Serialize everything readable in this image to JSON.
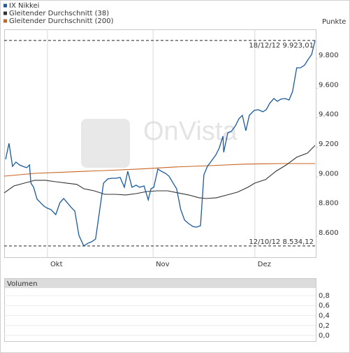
{
  "chart_data": [
    {
      "type": "line",
      "y_label": "Punkte",
      "watermark": "OnVista",
      "xlim": [
        0,
        90
      ],
      "xticks": [
        {
          "value": 12.5,
          "label": "Okt"
        },
        {
          "value": 43,
          "label": "Nov"
        },
        {
          "value": 72.4,
          "label": "Dez"
        }
      ],
      "ylim": [
        8458,
        9998
      ],
      "yticks": [
        {
          "value": 8600,
          "label": "8.600"
        },
        {
          "value": 8800,
          "label": "8.800"
        },
        {
          "value": 9000,
          "label": "9.000"
        },
        {
          "value": 9200,
          "label": "9.200"
        },
        {
          "value": 9400,
          "label": "9.400"
        },
        {
          "value": 9600,
          "label": "9.600"
        },
        {
          "value": 9800,
          "label": "9.800"
        }
      ],
      "grid_x": true,
      "annotations": [
        {
          "value": 9923.01,
          "label": "18/12/12  9.923,01"
        },
        {
          "value": 8534.12,
          "label": "12/10/12  8.534,12"
        }
      ],
      "series": [
        {
          "name": "IX Nikkei",
          "color": "#1a5a9e",
          "x": [
            0.4,
            1.4,
            2.4,
            3.4,
            4.4,
            5.4,
            6.5,
            7.3,
            7.7,
            8.5,
            9.5,
            10.5,
            11.5,
            12.5,
            13.5,
            14.9,
            16.1,
            17.2,
            18.2,
            19.4,
            20.4,
            21.6,
            23.0,
            24.2,
            25.2,
            26.4,
            27.6,
            28.7,
            29.9,
            31.1,
            32.3,
            33.5,
            34.7,
            35.7,
            36.9,
            38.1,
            39.1,
            40.4,
            41.6,
            42.4,
            43.2,
            44.4,
            45.4,
            46.6,
            47.6,
            48.8,
            49.8,
            51.0,
            52.1,
            53.3,
            54.5,
            55.5,
            56.7,
            57.7,
            58.7,
            59.9,
            61.1,
            62.1,
            63.2,
            63.4,
            64.6,
            65.6,
            66.8,
            67.8,
            68.8,
            69.8,
            70.8,
            72.2,
            73.4,
            74.7,
            75.7,
            76.7,
            77.9,
            78.9,
            79.9,
            81.1,
            82.3,
            83.3,
            84.5,
            85.6,
            86.8,
            87.8,
            88.8,
            89.8
          ],
          "values": [
            9120,
            9228,
            9072,
            9101,
            9082,
            9072,
            9063,
            9082,
            8959,
            8931,
            8850,
            8827,
            8803,
            8789,
            8780,
            8746,
            8827,
            8855,
            8827,
            8794,
            8770,
            8605,
            8534,
            8553,
            8562,
            8581,
            8780,
            8959,
            8987,
            8992,
            8992,
            8997,
            8931,
            9039,
            8931,
            8945,
            8931,
            8940,
            8846,
            8921,
            8931,
            9054,
            9039,
            9025,
            9006,
            8959,
            8921,
            8780,
            8709,
            8685,
            8666,
            8661,
            8671,
            9016,
            9072,
            9110,
            9148,
            9195,
            9276,
            9167,
            9299,
            9309,
            9346,
            9394,
            9417,
            9313,
            9417,
            9450,
            9455,
            9441,
            9455,
            9498,
            9531,
            9512,
            9526,
            9531,
            9521,
            9578,
            9738,
            9738,
            9757,
            9795,
            9828,
            9923
          ]
        },
        {
          "name": "Gleitender Durchschnitt (38)",
          "color": "#333333",
          "x": [
            0,
            2.8,
            5.9,
            8.9,
            11.9,
            14.9,
            18.0,
            21.0,
            23.0,
            26.0,
            29.1,
            32.1,
            35.1,
            38.1,
            41.2,
            44.2,
            47.2,
            50.2,
            53.3,
            56.3,
            58.3,
            61.3,
            64.4,
            67.4,
            70.4,
            72.4,
            75.5,
            78.5,
            81.5,
            84.5,
            87.6,
            89.8
          ],
          "values": [
            8893,
            8940,
            8959,
            8978,
            8978,
            8968,
            8959,
            8950,
            8921,
            8907,
            8883,
            8883,
            8879,
            8888,
            8902,
            8907,
            8907,
            8893,
            8879,
            8860,
            8855,
            8860,
            8879,
            8898,
            8931,
            8959,
            8983,
            9039,
            9082,
            9134,
            9162,
            9214
          ]
        },
        {
          "name": "Gleitender Durchschnitt (200)",
          "color": "#c86420",
          "x": [
            0,
            8.9,
            19.0,
            29.1,
            39.1,
            49.2,
            59.3,
            69.4,
            79.5,
            89.8
          ],
          "values": [
            9006,
            9025,
            9035,
            9044,
            9054,
            9068,
            9077,
            9087,
            9091,
            9091
          ]
        }
      ]
    },
    {
      "type": "bar",
      "title": "Volumen",
      "ylim": [
        -0.112,
        0.954
      ],
      "yticks": [
        {
          "value": 0,
          "label": "0,0"
        },
        {
          "value": 0.2,
          "label": "0,2"
        },
        {
          "value": 0.4,
          "label": "0,4"
        },
        {
          "value": 0.6,
          "label": "0,6"
        },
        {
          "value": 0.8,
          "label": "0,8"
        }
      ],
      "grid": true
    }
  ]
}
